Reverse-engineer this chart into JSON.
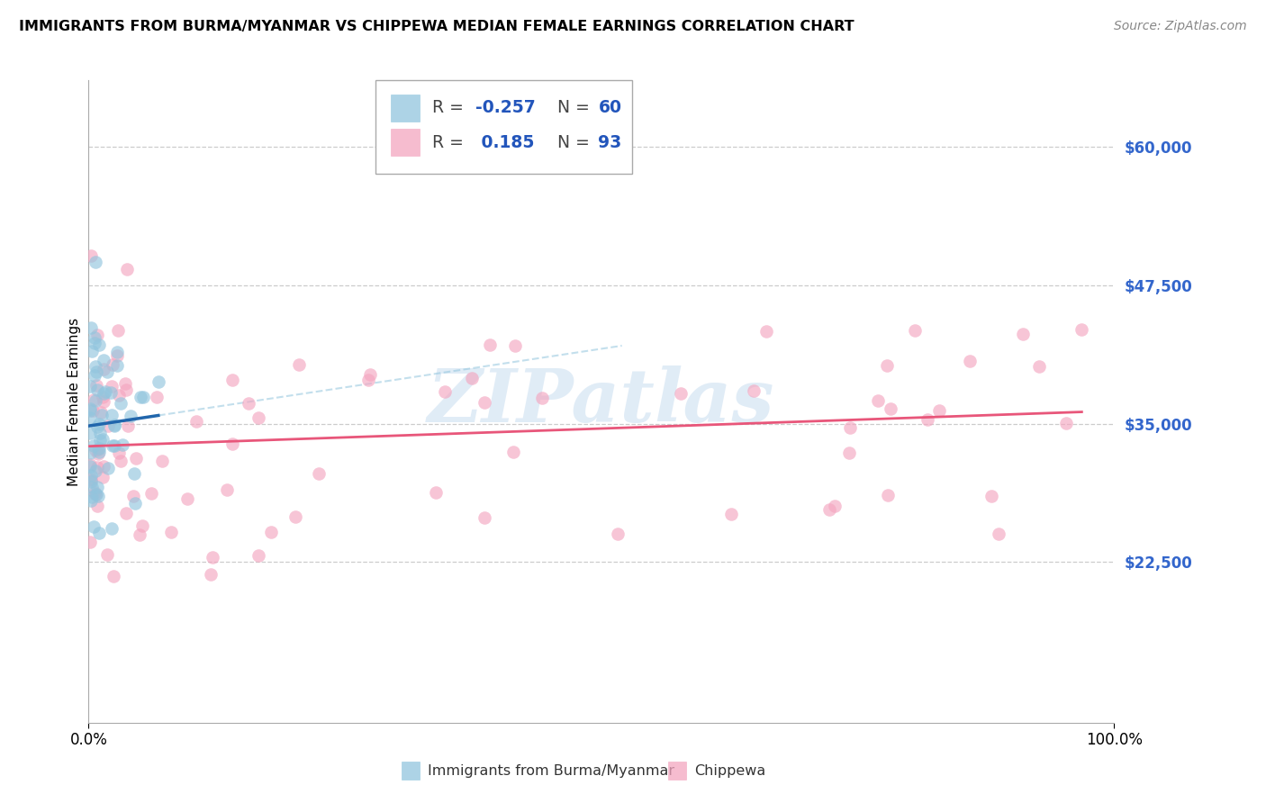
{
  "title": "IMMIGRANTS FROM BURMA/MYANMAR VS CHIPPEWA MEDIAN FEMALE EARNINGS CORRELATION CHART",
  "source": "Source: ZipAtlas.com",
  "ylabel": "Median Female Earnings",
  "ytick_labels": [
    "$22,500",
    "$35,000",
    "$47,500",
    "$60,000"
  ],
  "ytick_values": [
    22500,
    35000,
    47500,
    60000
  ],
  "ymin": 8000,
  "ymax": 66000,
  "xmin": 0.0,
  "xmax": 1.0,
  "color_blue": "#92c5de",
  "color_pink": "#f4a6c0",
  "color_blue_line": "#2166ac",
  "color_pink_line": "#e8567a",
  "color_blue_dashed": "#92c5de",
  "color_ytick": "#3366cc",
  "background_color": "#ffffff",
  "grid_color": "#cccccc",
  "watermark_text": "ZIPatlas",
  "watermark_color": "#c8ddf0",
  "title_fontsize": 11.5,
  "source_fontsize": 10,
  "ytick_fontsize": 12,
  "xtick_fontsize": 12,
  "legend_r1_val": "-0.257",
  "legend_n1_val": "60",
  "legend_r2_val": "0.185",
  "legend_n2_val": "93",
  "blue_r": -0.257,
  "blue_n": 60,
  "pink_r": 0.185,
  "pink_n": 93,
  "blue_seed": 77,
  "pink_seed": 42
}
